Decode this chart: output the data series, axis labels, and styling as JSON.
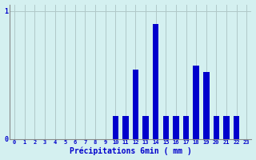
{
  "categories": [
    0,
    1,
    2,
    3,
    4,
    5,
    6,
    7,
    8,
    9,
    10,
    11,
    12,
    13,
    14,
    15,
    16,
    17,
    18,
    19,
    20,
    21,
    22,
    23
  ],
  "values": [
    0,
    0,
    0,
    0,
    0,
    0,
    0,
    0,
    0,
    0,
    0.18,
    0.18,
    0.54,
    0.18,
    0.9,
    0.18,
    0.18,
    0.18,
    0.57,
    0.52,
    0.18,
    0.18,
    0.18,
    0.0
  ],
  "bar_color": "#0000cc",
  "bg_color": "#d4f0f0",
  "grid_color": "#b0c8c8",
  "text_color": "#0000cc",
  "xlabel": "Précipitations 6min ( mm )",
  "ylim": [
    0,
    1.05
  ],
  "xlim": [
    -0.5,
    23.5
  ],
  "yticks": [
    0,
    1
  ],
  "ytick_labels": [
    "0",
    "1"
  ]
}
